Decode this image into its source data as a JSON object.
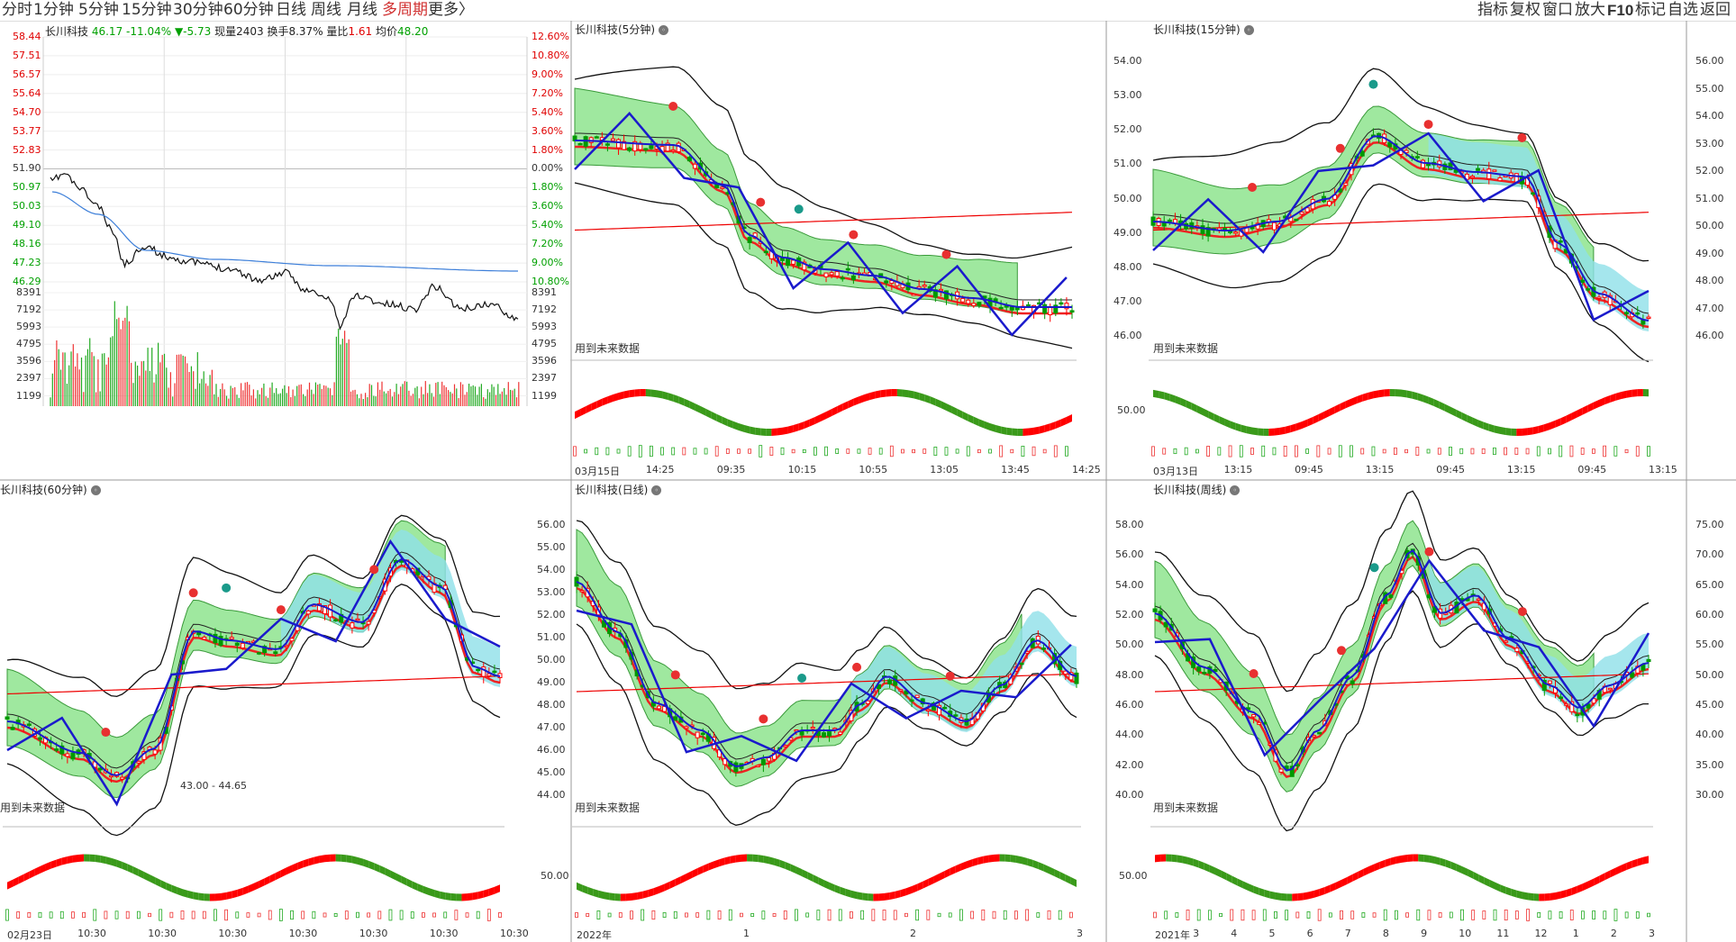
{
  "toolbar": {
    "periods": [
      {
        "label": "分时",
        "active": false
      },
      {
        "label": "1分钟",
        "active": false
      },
      {
        "label": "5分钟",
        "active": false
      },
      {
        "label": "15分钟",
        "active": false
      },
      {
        "label": "30分钟",
        "active": false
      },
      {
        "label": "60分钟",
        "active": false
      },
      {
        "label": "日线",
        "active": false
      },
      {
        "label": "周线",
        "active": false
      },
      {
        "label": "月线",
        "active": false
      },
      {
        "label": "多周期",
        "active": true
      }
    ],
    "more": "更多",
    "more_arrow": "〉",
    "right_items": [
      "指标",
      "复权",
      "窗口",
      "放大"
    ],
    "f10": "F10",
    "right_items2": [
      "标记",
      "自选",
      "返回"
    ]
  },
  "colors": {
    "up": "#ff0000",
    "down": "#009900",
    "avg_line": "#3d7fd9",
    "band": "#6fd36f",
    "cyan_band": "#8fe0e8",
    "ma_blue": "#1a1acc",
    "toolbar_active": "#d03030"
  },
  "intraday": {
    "stock": "长川科技",
    "price": "46.17",
    "change_pct": "-11.04%",
    "change": "▼-5.73",
    "volume_label": "现量",
    "volume": "2403",
    "turnover_label": "换手",
    "turnover": "8.37%",
    "ratio_label": "量比",
    "ratio": "1.61",
    "avg_label": "均价",
    "avg": "48.20",
    "price_ticks": [
      "58.44",
      "57.51",
      "56.57",
      "55.64",
      "54.70",
      "53.77",
      "52.83",
      "51.90",
      "50.97",
      "50.03",
      "49.10",
      "48.16",
      "47.23",
      "46.29"
    ],
    "pct_ticks": [
      "12.60%",
      "10.80%",
      "9.00%",
      "7.20%",
      "5.40%",
      "3.60%",
      "1.80%",
      "0.00%",
      "1.80%",
      "3.60%",
      "5.40%",
      "7.20%",
      "9.00%",
      "10.80%"
    ],
    "vol_ticks": [
      "8391",
      "7192",
      "5993",
      "4795",
      "3596",
      "2397",
      "1199"
    ]
  },
  "panels": [
    {
      "id": "p5",
      "title": "长川科技(5分钟)",
      "note": "用到未来数据",
      "yticks": [],
      "macd_tick": "",
      "xlabels": [
        "03月15日",
        "14:25",
        "09:35",
        "10:15",
        "10:55",
        "13:05",
        "13:45",
        "14:25"
      ]
    },
    {
      "id": "p15",
      "title": "长川科技(15分钟)",
      "note": "用到未来数据",
      "yticks": [
        "54.00",
        "53.00",
        "52.00",
        "51.00",
        "50.00",
        "49.00",
        "48.00",
        "47.00",
        "46.00"
      ],
      "yticks_right": [
        "56.00",
        "55.00",
        "54.00",
        "53.00",
        "52.00",
        "51.00",
        "50.00",
        "49.00",
        "48.00",
        "47.00",
        "46.00"
      ],
      "macd_tick": "50.00",
      "xlabels": [
        "03月13日",
        "13:15",
        "09:45",
        "13:15",
        "09:45",
        "13:15",
        "09:45",
        "13:15"
      ]
    },
    {
      "id": "p60",
      "title": "长川科技(60分钟)",
      "note": "用到未来数据",
      "range_label": "43.00 - 44.65",
      "yticks": [],
      "macd_tick": "",
      "xlabels": [
        "02月23日",
        "10:30",
        "10:30",
        "10:30",
        "10:30",
        "10:30",
        "10:30",
        "10:30"
      ]
    },
    {
      "id": "pd",
      "title": "长川科技(日线)",
      "note": "用到未来数据",
      "yticks": [
        "56.00",
        "55.00",
        "54.00",
        "53.00",
        "52.00",
        "51.00",
        "50.00",
        "49.00",
        "48.00",
        "47.00",
        "46.00",
        "45.00",
        "44.00"
      ],
      "macd_tick": "50.00",
      "xlabels": [
        "2022年",
        "1",
        "2",
        "3"
      ]
    },
    {
      "id": "pw",
      "title": "长川科技(周线)",
      "note": "用到未来数据",
      "yticks": [
        "58.00",
        "56.00",
        "54.00",
        "52.00",
        "50.00",
        "48.00",
        "46.00",
        "44.00",
        "42.00",
        "40.00"
      ],
      "yticks_right": [
        "75.00",
        "70.00",
        "65.00",
        "60.00",
        "55.00",
        "50.00",
        "45.00",
        "40.00",
        "35.00",
        "30.00"
      ],
      "macd_tick": "50.00",
      "xlabels": [
        "2021年",
        "3",
        "4",
        "5",
        "6",
        "7",
        "8",
        "9",
        "10",
        "11",
        "12",
        "1",
        "2",
        "3"
      ]
    }
  ]
}
